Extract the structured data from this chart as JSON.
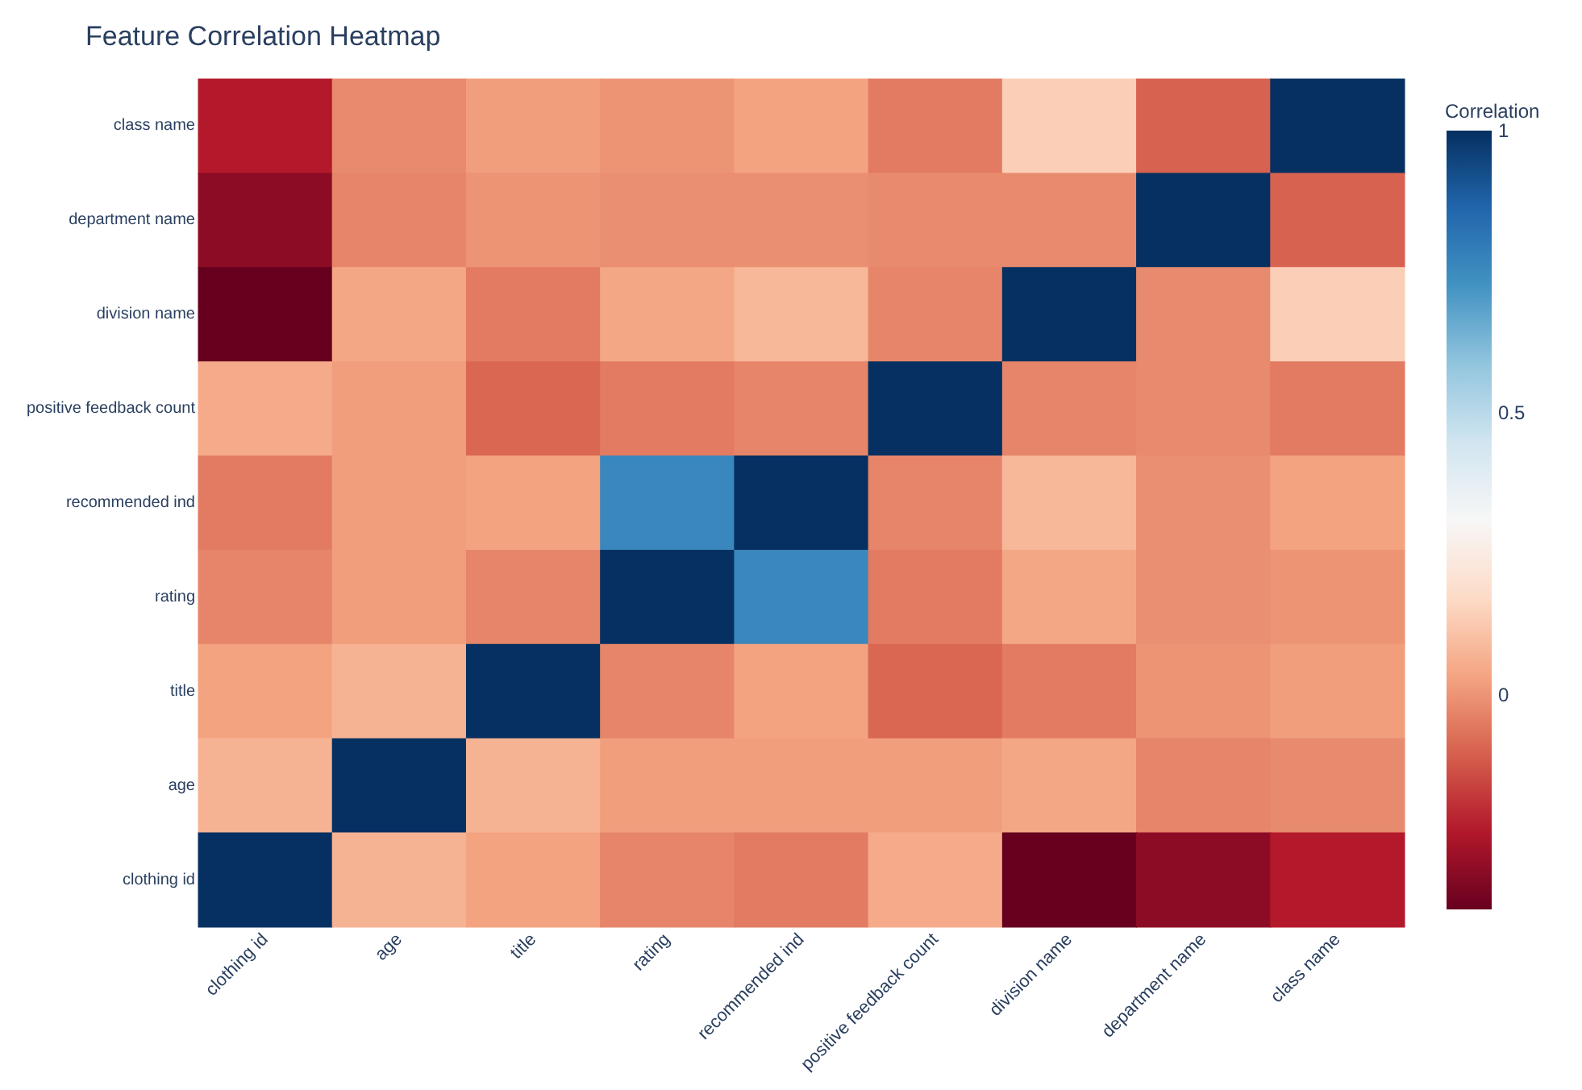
{
  "chart_data": {
    "type": "heatmap",
    "title": "Feature Correlation Heatmap",
    "categories": [
      "clothing id",
      "age",
      "title",
      "rating",
      "recommended ind",
      "positive feedback count",
      "division name",
      "department name",
      "class name"
    ],
    "y_categories": [
      "class name",
      "department name",
      "division name",
      "positive feedback count",
      "recommended ind",
      "rating",
      "title",
      "age",
      "clothing id"
    ],
    "cells": [
      [
        -0.24,
        -0.02,
        0.02,
        0,
        0.03,
        -0.05,
        0.14,
        -0.1,
        1
      ],
      [
        -0.31,
        -0.03,
        0,
        -0.01,
        -0.01,
        -0.02,
        -0.02,
        1,
        -0.1
      ],
      [
        -0.38,
        0.04,
        -0.05,
        0.04,
        0.08,
        -0.03,
        1,
        -0.02,
        0.14
      ],
      [
        0.05,
        0.02,
        -0.09,
        -0.05,
        -0.03,
        1,
        -0.03,
        -0.02,
        -0.05
      ],
      [
        -0.05,
        0.02,
        0.03,
        0.76,
        1,
        -0.03,
        0.08,
        -0.01,
        0.03
      ],
      [
        -0.03,
        0.02,
        -0.03,
        1,
        0.76,
        -0.05,
        0.04,
        -0.01,
        0
      ],
      [
        0.03,
        0.07,
        1,
        -0.03,
        0.03,
        -0.09,
        -0.05,
        0,
        0.02
      ],
      [
        0.07,
        1,
        0.07,
        0.02,
        0.02,
        0.02,
        0.04,
        -0.03,
        -0.02
      ],
      [
        1,
        0.07,
        0.03,
        -0.03,
        -0.05,
        0.05,
        -0.38,
        -0.31,
        -0.24
      ]
    ],
    "clabel": "Correlation",
    "clim": [
      -0.38,
      1
    ],
    "cticks": [
      0,
      0.5,
      1
    ]
  }
}
